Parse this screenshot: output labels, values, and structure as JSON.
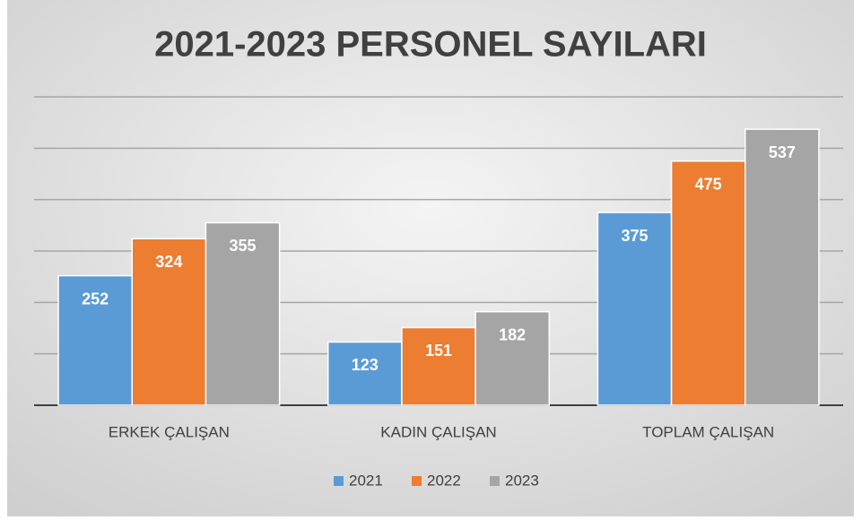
{
  "chart_data": {
    "type": "bar",
    "title": "2021-2023 PERSONEL SAYILARI",
    "categories": [
      "ERKEK ÇALIŞAN",
      "KADIN ÇALIŞAN",
      "TOPLAM ÇALIŞAN"
    ],
    "series": [
      {
        "name": "2021",
        "color": "#5b9bd5",
        "values": [
          252,
          123,
          375
        ]
      },
      {
        "name": "2022",
        "color": "#ed7d31",
        "values": [
          324,
          151,
          475
        ]
      },
      {
        "name": "2023",
        "color": "#a5a5a5",
        "values": [
          355,
          182,
          537
        ]
      }
    ],
    "ylim": [
      0,
      600
    ],
    "yticks": [
      0,
      100,
      200,
      300,
      400,
      500,
      600
    ],
    "grid": true,
    "legend": "bottom"
  }
}
